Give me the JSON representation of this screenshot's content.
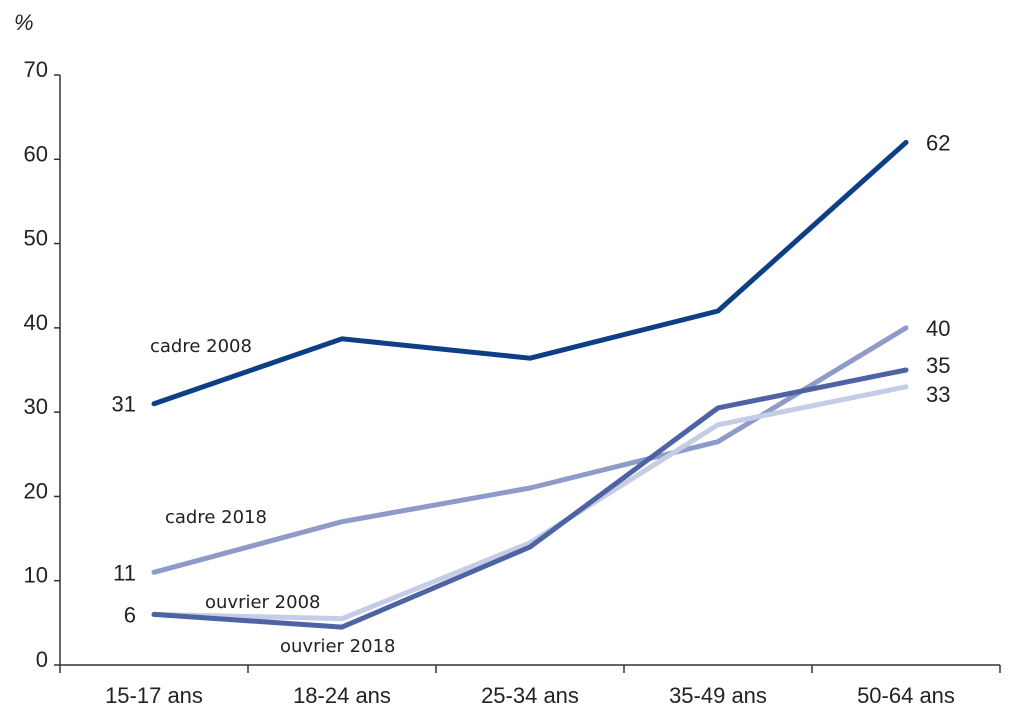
{
  "chart_data": {
    "type": "line",
    "unit_label": "%",
    "categories": [
      "15-17 ans",
      "18-24 ans",
      "25-34 ans",
      "35-49 ans",
      "50-64 ans"
    ],
    "ylim": [
      0,
      70
    ],
    "yticks": [
      0,
      10,
      20,
      30,
      40,
      50,
      60,
      70
    ],
    "grid": false,
    "series": [
      {
        "name": "cadre 2008",
        "values": [
          31,
          38.7,
          36.4,
          42,
          62
        ],
        "color": "#0d3f86",
        "width": 5
      },
      {
        "name": "cadre 2018",
        "values": [
          11,
          17,
          21,
          26.5,
          40
        ],
        "color": "#8e9bc8",
        "width": 5
      },
      {
        "name": "ouvrier 2008",
        "values": [
          6,
          5.5,
          14.5,
          28.5,
          33
        ],
        "color": "#c5cde6",
        "width": 5
      },
      {
        "name": "ouvrier 2018",
        "values": [
          6,
          4.5,
          14,
          30.5,
          35
        ],
        "color": "#4e63a3",
        "width": 5
      }
    ],
    "data_labels": [
      {
        "series": "cadre 2008",
        "index": 0,
        "text": "31"
      },
      {
        "series": "cadre 2008",
        "index": 4,
        "text": "62"
      },
      {
        "series": "cadre 2018",
        "index": 0,
        "text": "11"
      },
      {
        "series": "ouvrier 2008",
        "index": 0,
        "text": "6"
      },
      {
        "series": "cadre 2018",
        "index": 4,
        "text": "40"
      },
      {
        "series": "ouvrier 2018",
        "index": 4,
        "text": "35"
      },
      {
        "series": "ouvrier 2008",
        "index": 4,
        "text": "33"
      }
    ]
  }
}
